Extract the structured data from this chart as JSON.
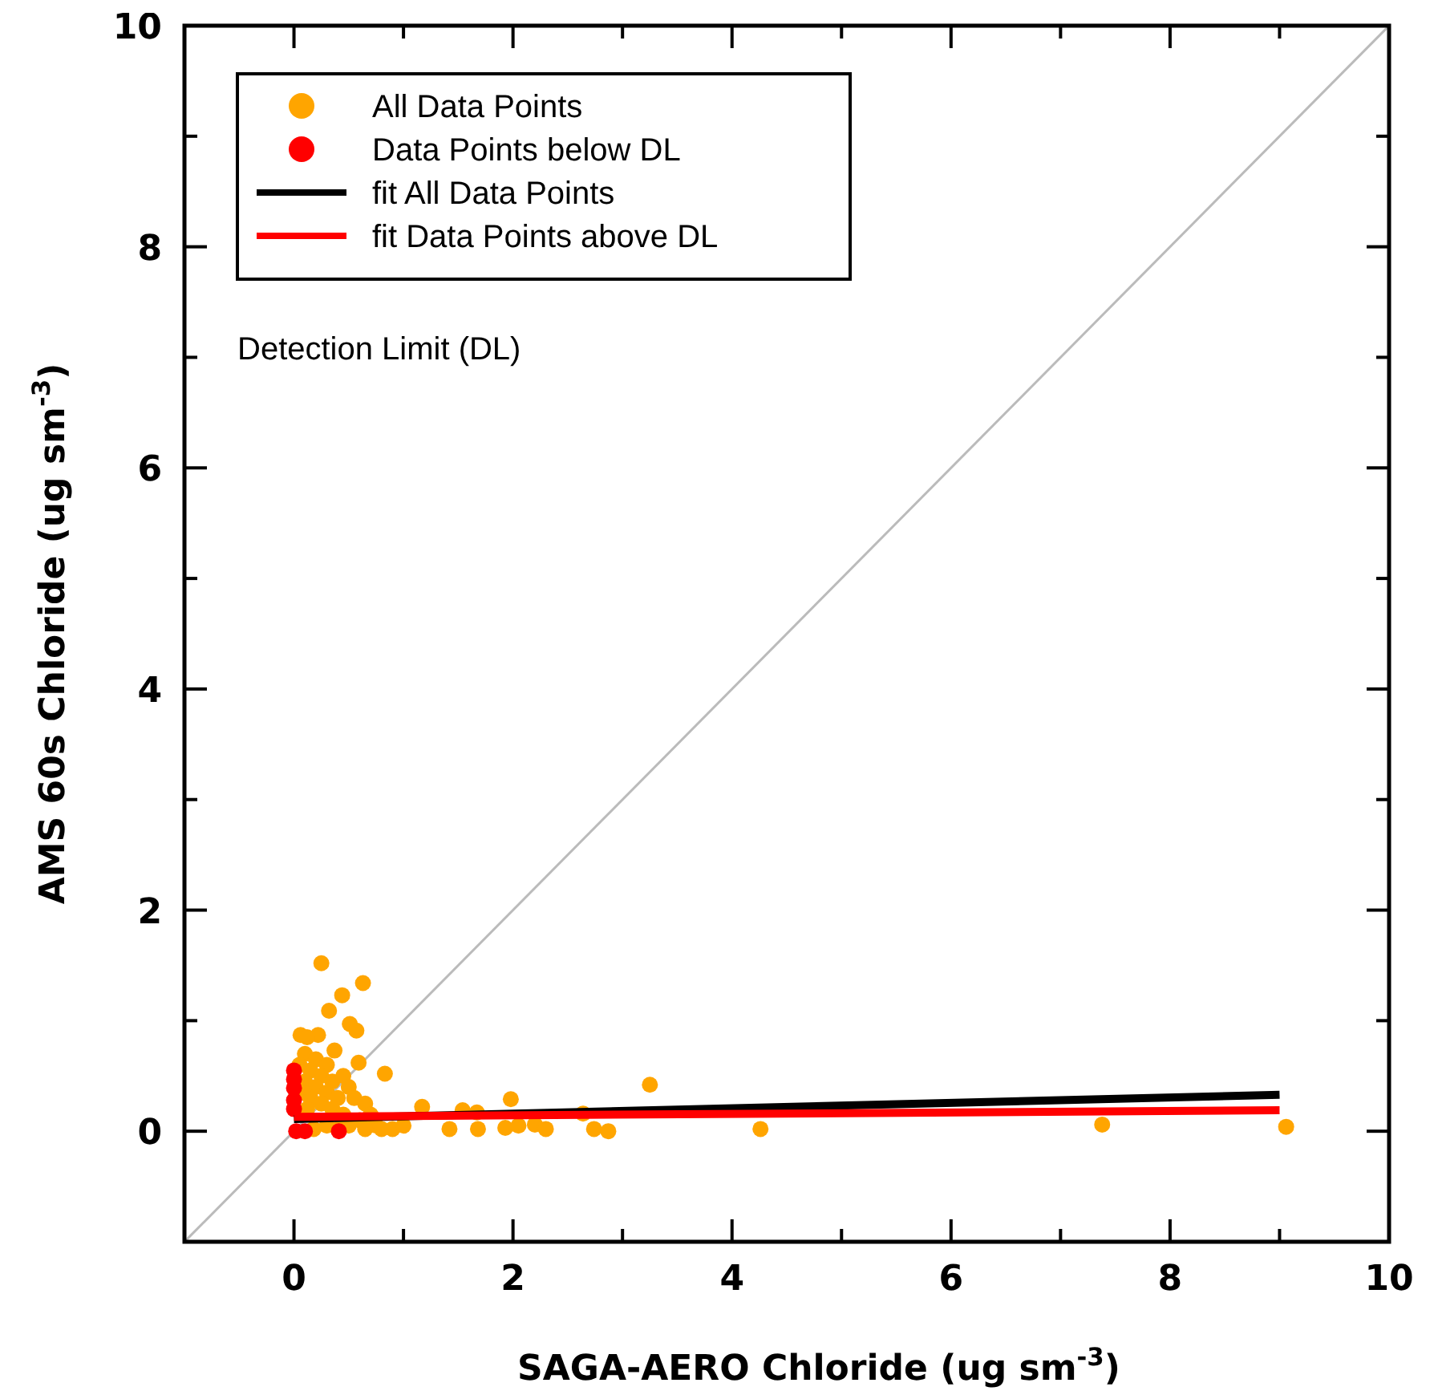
{
  "chart_data": {
    "type": "scatter",
    "xlabel": "SAGA-AERO Chloride (ug sm$^{-3}$)",
    "ylabel": "AMS 60s Chloride (ug sm$^{-3}$)",
    "xlim": [
      -1,
      10
    ],
    "ylim": [
      -1,
      10
    ],
    "xticks": [
      {
        "value": -1,
        "label": null
      },
      0,
      {
        "value": 1,
        "label": null
      },
      2,
      {
        "value": 3,
        "label": null
      },
      4,
      {
        "value": 5,
        "label": null
      },
      6,
      {
        "value": 7,
        "label": null
      },
      8,
      {
        "value": 9,
        "label": null
      },
      10
    ],
    "yticks": [
      {
        "value": -1,
        "label": null
      },
      0,
      {
        "value": 1,
        "label": null
      },
      2,
      {
        "value": 3,
        "label": null
      },
      4,
      {
        "value": 5,
        "label": null
      },
      6,
      {
        "value": 7,
        "label": null
      },
      8,
      {
        "value": 9,
        "label": null
      },
      10
    ],
    "grid": false,
    "legend": "top left",
    "annotations": [
      "Detection Limit (DL)"
    ],
    "series": [
      {
        "name": "All Data Points",
        "marker": "circle",
        "color": "#ffa500",
        "x": [
          0.25,
          0.63,
          0.44,
          0.32,
          0.51,
          0.57,
          0.22,
          0.06,
          0.12,
          0.37,
          0.59,
          0.83,
          0.1,
          0.2,
          0.3,
          0.15,
          0.25,
          0.35,
          0.45,
          0.5,
          0.1,
          0.2,
          0.3,
          0.4,
          0.55,
          0.65,
          0.7,
          0.15,
          0.25,
          0.35,
          0.45,
          0.6,
          0.75,
          0.8,
          0.3,
          0.4,
          0.5,
          0.65,
          0.9,
          1.0,
          0.05,
          0.08,
          0.12,
          0.18,
          1.17,
          1.54,
          1.67,
          1.98,
          1.42,
          1.68,
          1.93,
          2.05,
          2.2,
          2.3,
          2.64,
          2.74,
          2.87,
          3.25,
          4.26,
          7.38,
          9.06
        ],
        "values": [
          1.52,
          1.34,
          1.23,
          1.09,
          0.97,
          0.91,
          0.87,
          0.87,
          0.85,
          0.73,
          0.62,
          0.52,
          0.7,
          0.65,
          0.6,
          0.55,
          0.5,
          0.45,
          0.5,
          0.4,
          0.45,
          0.4,
          0.35,
          0.3,
          0.3,
          0.25,
          0.15,
          0.3,
          0.25,
          0.2,
          0.15,
          0.1,
          0.05,
          0.02,
          0.05,
          0.02,
          0.05,
          0.02,
          0.02,
          0.05,
          0.6,
          0.35,
          0.2,
          0.02,
          0.22,
          0.19,
          0.17,
          0.29,
          0.02,
          0.02,
          0.03,
          0.05,
          0.06,
          0.02,
          0.16,
          0.02,
          0.0,
          0.42,
          0.02,
          0.06,
          0.04
        ]
      },
      {
        "name": "Data Points below DL",
        "marker": "circle",
        "color": "#ff0000",
        "x": [
          0,
          0,
          0,
          0,
          0,
          0.02,
          0.1,
          0.41
        ],
        "values": [
          0.55,
          0.47,
          0.39,
          0.28,
          0.2,
          0.0,
          0.0,
          0.0
        ]
      },
      {
        "name": "fit All Data Points",
        "type": "line",
        "color": "#000000",
        "x": [
          0,
          9
        ],
        "values": [
          0.11,
          0.33
        ]
      },
      {
        "name": "fit Data Points above DL",
        "type": "line",
        "color": "#ff0000",
        "x": [
          0,
          9
        ],
        "values": [
          0.13,
          0.19
        ]
      },
      {
        "type": "line",
        "color": "#bbbbbb",
        "x": [
          -1,
          10
        ],
        "values": [
          -1,
          10
        ]
      }
    ]
  }
}
